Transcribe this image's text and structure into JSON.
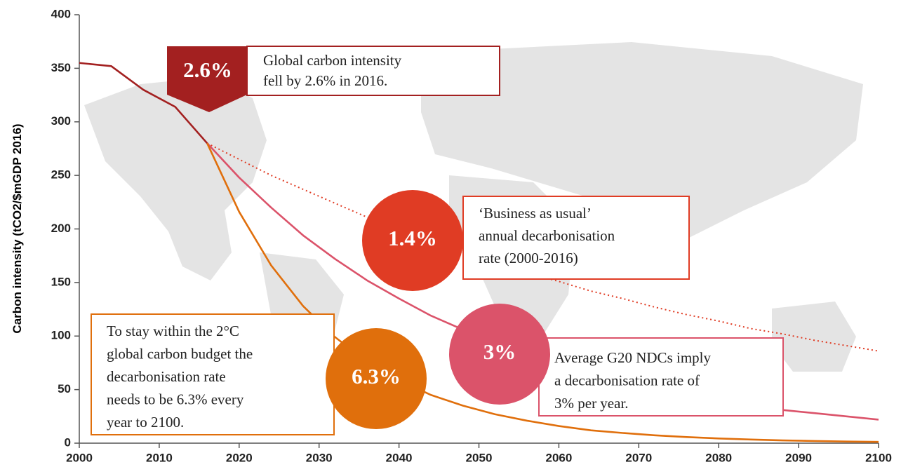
{
  "chart_data": {
    "type": "line",
    "y_label": "Carbon intensity (tCO2/$mGDP 2016)",
    "x": [
      2000,
      2004,
      2008,
      2012,
      2016,
      2020,
      2024,
      2028,
      2032,
      2036,
      2040,
      2044,
      2048,
      2052,
      2056,
      2060,
      2064,
      2068,
      2072,
      2076,
      2080,
      2084,
      2088,
      2092,
      2096,
      2100
    ],
    "series": [
      {
        "color": "#a32020",
        "style": "solid",
        "values": [
          355,
          352,
          330,
          314,
          280,
          null,
          null,
          null,
          null,
          null,
          null,
          null,
          null,
          null,
          null,
          null,
          null,
          null,
          null,
          null,
          null,
          null,
          null,
          null,
          null,
          null
        ]
      },
      {
        "color": "#e03c24",
        "style": "dotted",
        "values": [
          null,
          null,
          null,
          null,
          280,
          265,
          250,
          237,
          224,
          211,
          200,
          189,
          178,
          169,
          159,
          151,
          142,
          135,
          127,
          120,
          114,
          107,
          102,
          96,
          91,
          86
        ]
      },
      {
        "color": "#db536a",
        "style": "solid",
        "values": [
          null,
          null,
          null,
          null,
          280,
          248,
          220,
          194,
          172,
          152,
          135,
          119,
          106,
          94,
          83,
          73,
          65,
          58,
          51,
          45,
          40,
          35,
          31,
          28,
          25,
          22
        ]
      },
      {
        "color": "#e06f0c",
        "style": "solid",
        "values": [
          null,
          null,
          null,
          null,
          280,
          216,
          166,
          128,
          99,
          76,
          59,
          45,
          35,
          27,
          21,
          16,
          12,
          9.5,
          7.3,
          5.7,
          4.4,
          3.4,
          2.6,
          2.0,
          1.5,
          1.2
        ]
      }
    ],
    "xlim": [
      2000,
      2100
    ],
    "xticks": [
      2000,
      2010,
      2020,
      2030,
      2040,
      2050,
      2060,
      2070,
      2080,
      2090,
      2100
    ],
    "ylim": [
      0,
      400
    ],
    "yticks": [
      0,
      50,
      100,
      150,
      200,
      250,
      300,
      350,
      400
    ],
    "grid": false,
    "annotations": [
      {
        "badge": "2.6%",
        "color": "#a32020",
        "lines": [
          "Global carbon intensity",
          "fell by 2.6% in 2016."
        ]
      },
      {
        "badge": "1.4%",
        "color": "#e03c24",
        "lines": [
          "‘Business as usual’",
          "annual decarbonisation",
          "rate (2000-2016)"
        ]
      },
      {
        "badge": "3%",
        "color": "#db536a",
        "lines": [
          "Average G20 NDCs imply",
          "a decarbonisation rate of",
          "3% per year."
        ]
      },
      {
        "badge": "6.3%",
        "color": "#e06f0c",
        "lines": [
          "To stay within the 2°C",
          "global carbon budget the",
          "decarbonisation rate",
          "needs to be 6.3% every",
          "year to 2100."
        ]
      }
    ]
  }
}
